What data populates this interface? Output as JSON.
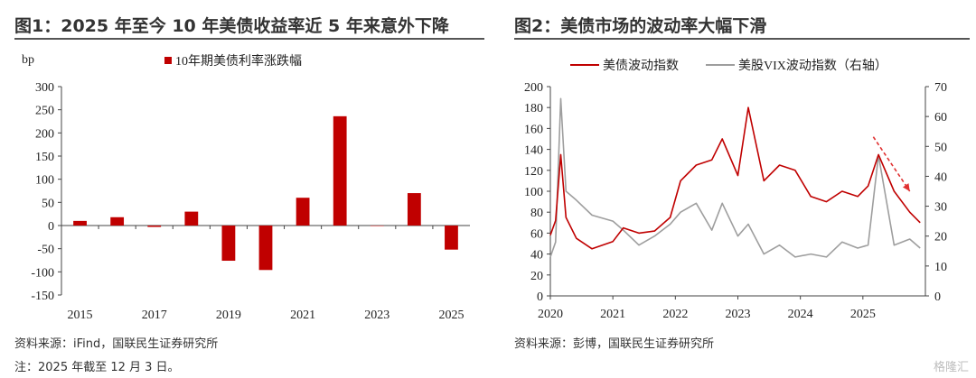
{
  "figures": [
    {
      "title": "图1：2025 年至今 10 年美债收益率近 5 年来意外下降",
      "source": "资料来源：iFind，国联民生证券研究所",
      "note": "注：2025 年截至 12 月 3 日。"
    },
    {
      "title": "图2：美债市场的波动率大幅下滑",
      "source": "资料来源：彭博，国联民生证券研究所"
    }
  ],
  "watermark": "格隆汇",
  "chart_data": [
    {
      "type": "bar",
      "unit": "bp",
      "legend": "10年期美债利率涨跌幅",
      "color": "#c00000",
      "years": [
        "2015",
        "2016",
        "2017",
        "2018",
        "2019",
        "2020",
        "2021",
        "2022",
        "2023",
        "2024",
        "2025"
      ],
      "values": [
        10,
        18,
        -3,
        30,
        -76,
        -96,
        60,
        236,
        0,
        70,
        -52
      ],
      "ylim": [
        -150,
        300
      ],
      "yticks": [
        "-150",
        "-100",
        "-50",
        "0",
        "50",
        "100",
        "150",
        "200",
        "250",
        "300"
      ],
      "xtick_labels": [
        "2015",
        "2017",
        "2019",
        "2021",
        "2023",
        "2025"
      ]
    },
    {
      "type": "line",
      "series": [
        {
          "name": "美债波动指数",
          "axis": "left",
          "color": "#c00000",
          "x": [
            "2020-01",
            "2020-02",
            "2020-03",
            "2020-04",
            "2020-06",
            "2020-09",
            "2021-01",
            "2021-03",
            "2021-06",
            "2021-09",
            "2021-12",
            "2022-02",
            "2022-05",
            "2022-08",
            "2022-10",
            "2023-01",
            "2023-03",
            "2023-06",
            "2023-09",
            "2023-12",
            "2024-03",
            "2024-06",
            "2024-09",
            "2024-12",
            "2025-02",
            "2025-04",
            "2025-07",
            "2025-10",
            "2025-12"
          ],
          "y": [
            58,
            72,
            135,
            75,
            55,
            45,
            52,
            65,
            60,
            62,
            75,
            110,
            125,
            130,
            150,
            115,
            180,
            110,
            125,
            120,
            95,
            90,
            100,
            95,
            105,
            135,
            100,
            80,
            70
          ]
        },
        {
          "name": "美股VIX波动指数（右轴）",
          "axis": "right",
          "color": "#9e9e9e",
          "x": [
            "2020-01",
            "2020-02",
            "2020-03",
            "2020-04",
            "2020-06",
            "2020-09",
            "2021-01",
            "2021-03",
            "2021-06",
            "2021-09",
            "2021-12",
            "2022-02",
            "2022-05",
            "2022-08",
            "2022-10",
            "2023-01",
            "2023-03",
            "2023-06",
            "2023-09",
            "2023-12",
            "2024-03",
            "2024-06",
            "2024-09",
            "2024-12",
            "2025-02",
            "2025-04",
            "2025-07",
            "2025-10",
            "2025-12"
          ],
          "y": [
            13,
            18,
            66,
            35,
            32,
            27,
            25,
            22,
            17,
            20,
            24,
            28,
            31,
            22,
            31,
            20,
            24,
            14,
            17,
            13,
            14,
            13,
            18,
            16,
            17,
            47,
            17,
            19,
            16
          ]
        }
      ],
      "left_ylim": [
        0,
        200
      ],
      "left_yticks": [
        "0",
        "20",
        "40",
        "60",
        "80",
        "100",
        "120",
        "140",
        "160",
        "180",
        "200"
      ],
      "right_ylim": [
        0,
        70
      ],
      "right_yticks": [
        "0",
        "10",
        "20",
        "30",
        "40",
        "50",
        "60",
        "70"
      ],
      "xtick_labels": [
        "2020",
        "2021",
        "2022",
        "2023",
        "2024",
        "2025"
      ],
      "arrow_color": "#e03030"
    }
  ]
}
